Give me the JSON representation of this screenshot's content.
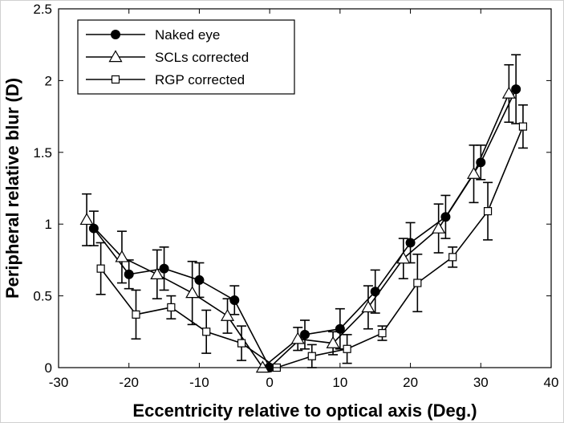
{
  "chart_data": {
    "type": "line",
    "title": "",
    "xlabel": "Eccentricity relative to optical axis (Deg.)",
    "ylabel": "Peripheral relative blur (D)",
    "xlim": [
      -30,
      40
    ],
    "ylim": [
      0,
      2.5
    ],
    "xticks": [
      -30,
      -20,
      -10,
      0,
      10,
      20,
      30,
      40
    ],
    "xtick_labels": [
      "-30",
      "-20",
      "-10",
      "0",
      "10",
      "20",
      "30",
      "40"
    ],
    "yticks": [
      0,
      0.5,
      1,
      1.5,
      2,
      2.5
    ],
    "ytick_labels": [
      "0",
      "0.5",
      "1",
      "1.5",
      "2",
      "2.5"
    ],
    "grid": false,
    "legend_position": "top-left",
    "series": [
      {
        "name": "Naked eye",
        "marker": "filled-circle",
        "color": "#000000",
        "x": [
          -25,
          -20,
          -15,
          -10,
          -5,
          0,
          5,
          10,
          15,
          20,
          25,
          30,
          35
        ],
        "y": [
          0.97,
          0.65,
          0.69,
          0.61,
          0.47,
          0.0,
          0.23,
          0.27,
          0.53,
          0.87,
          1.05,
          1.43,
          1.94
        ],
        "err": [
          0.12,
          0.1,
          0.15,
          0.12,
          0.1,
          0.01,
          0.1,
          0.14,
          0.15,
          0.14,
          0.15,
          0.12,
          0.24
        ]
      },
      {
        "name": "SCLs corrected",
        "marker": "open-triangle",
        "color": "#000000",
        "x": [
          -26,
          -21,
          -16,
          -11,
          -6,
          -1,
          4,
          9,
          14,
          19,
          24,
          29,
          34
        ],
        "y": [
          1.03,
          0.77,
          0.65,
          0.52,
          0.36,
          0.0,
          0.2,
          0.17,
          0.42,
          0.76,
          0.97,
          1.35,
          1.91
        ],
        "err": [
          0.18,
          0.18,
          0.17,
          0.22,
          0.12,
          0.01,
          0.08,
          0.08,
          0.15,
          0.14,
          0.17,
          0.2,
          0.2
        ]
      },
      {
        "name": "RGP corrected",
        "marker": "open-square",
        "color": "#000000",
        "x": [
          -24,
          -19,
          -14,
          -9,
          -4,
          1,
          6,
          11,
          16,
          21,
          26,
          31,
          36
        ],
        "y": [
          0.69,
          0.37,
          0.42,
          0.25,
          0.17,
          0.0,
          0.08,
          0.13,
          0.24,
          0.59,
          0.77,
          1.09,
          1.68
        ],
        "err": [
          0.18,
          0.17,
          0.08,
          0.15,
          0.12,
          0.01,
          0.08,
          0.1,
          0.05,
          0.2,
          0.07,
          0.2,
          0.15
        ]
      }
    ]
  }
}
